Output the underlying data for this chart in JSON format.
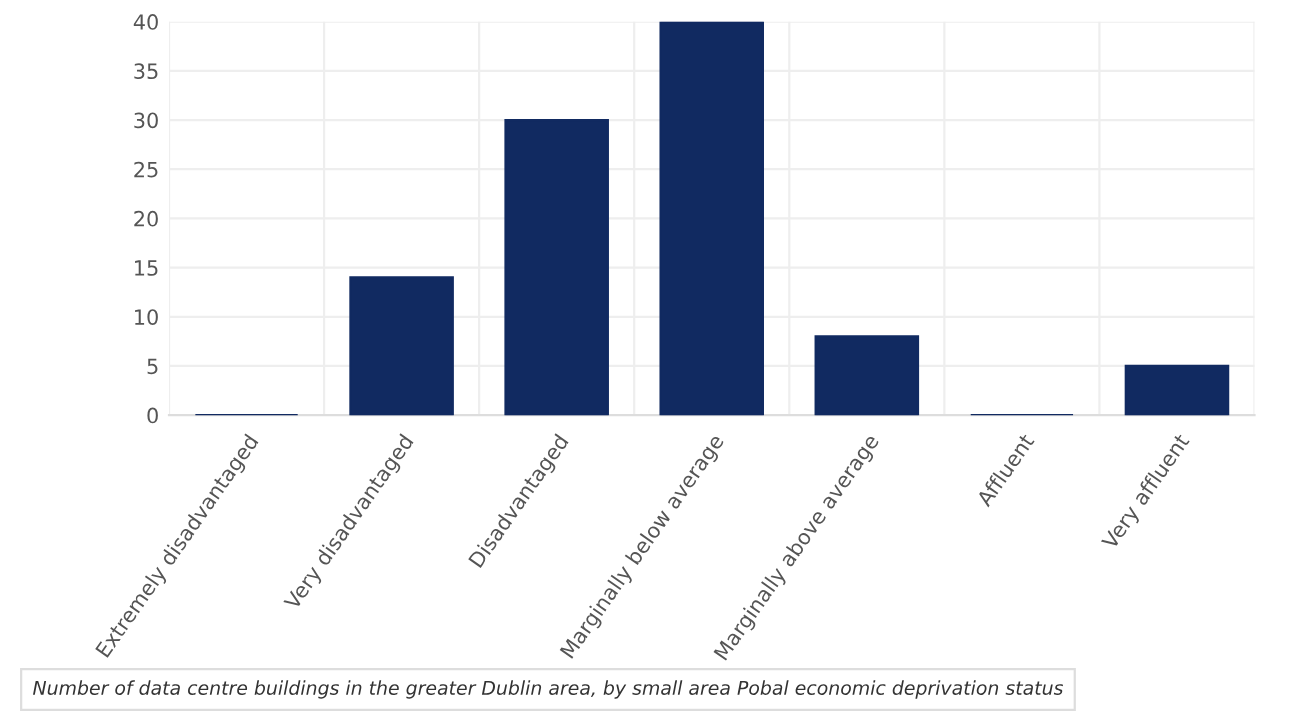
{
  "chart_data": {
    "type": "bar",
    "categories": [
      "Extremely disadvantaged",
      "Very disadvantaged",
      "Disadvantaged",
      "Marginally below average",
      "Marginally above average",
      "Affluent",
      "Very affluent"
    ],
    "values": [
      0,
      14,
      30,
      40,
      8,
      0,
      5
    ],
    "color": "#112a61",
    "ylim": [
      0,
      40
    ],
    "yticks": [
      0,
      5,
      10,
      15,
      20,
      25,
      30,
      35,
      40
    ],
    "grid": true,
    "annotations": [
      "Number of data centre buildings in the greater Dublin area, by small area Pobal economic deprivation status"
    ]
  }
}
